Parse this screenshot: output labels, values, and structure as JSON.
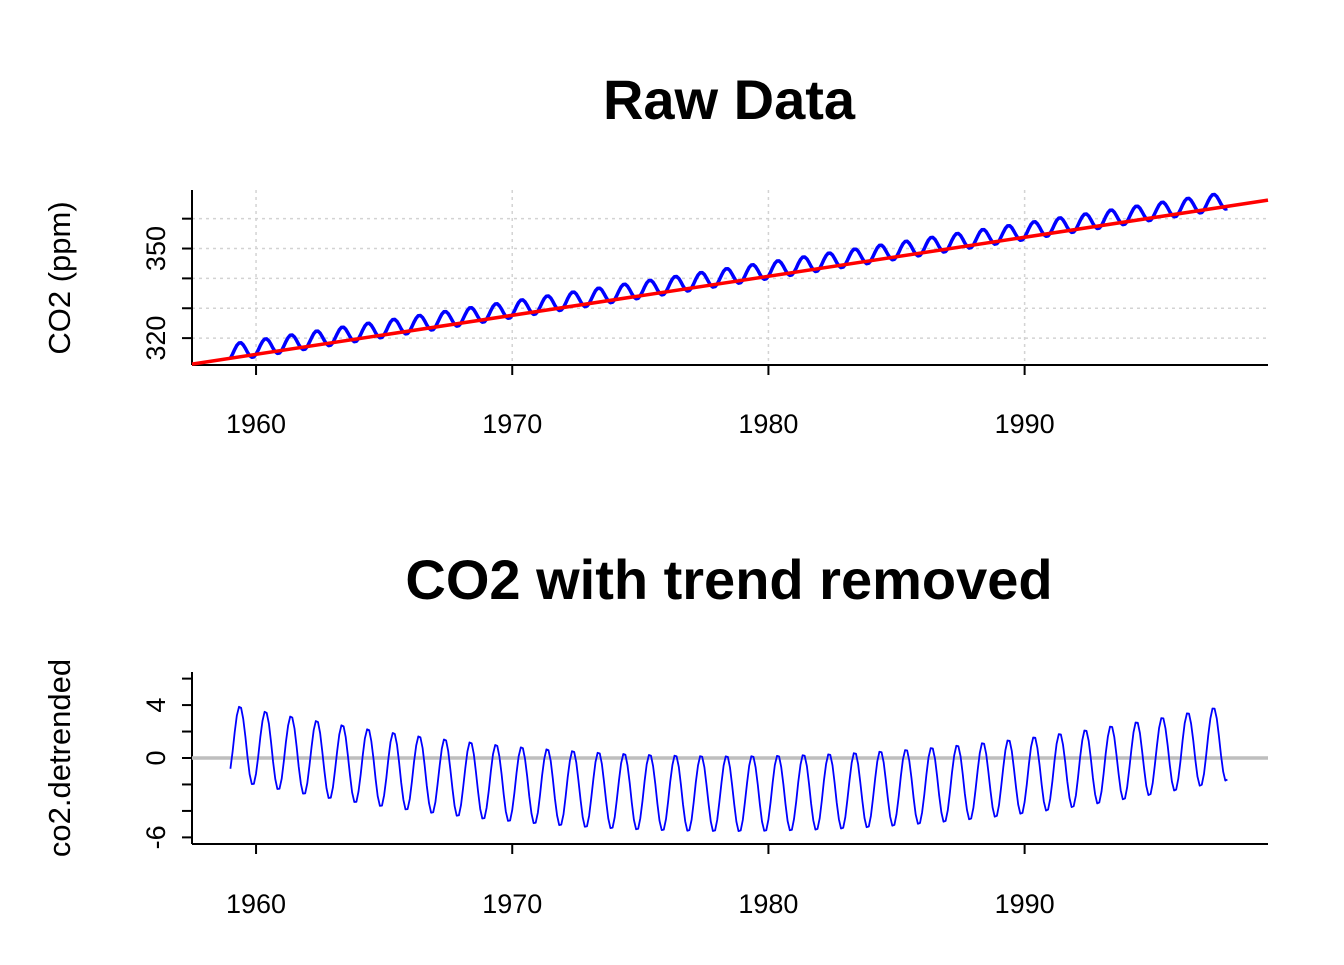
{
  "chart_data": [
    {
      "type": "line",
      "title": "Raw Data",
      "xlabel": "",
      "ylabel": "CO2 (ppm)",
      "xlim": [
        1957.5,
        1999.5
      ],
      "ylim": [
        311.0,
        369.6
      ],
      "x_ticks": [
        1960,
        1970,
        1980,
        1990
      ],
      "y_ticks": [
        320,
        330,
        340,
        350,
        360
      ],
      "y_tick_labels": [
        "320",
        "",
        "",
        "350",
        ""
      ],
      "grid": true,
      "series": [
        {
          "kind": "monthly CO2 concentration",
          "color": "#0000ff",
          "start": 1959.0,
          "end": 1997.917,
          "samples_per_year": 12,
          "trend_intercept": 315.2,
          "trend_slope": 1.307,
          "trend_curvature": 0.0,
          "seasonal_amplitude": 2.8,
          "peak_month_fraction": 0.37,
          "values_note": ""
        },
        {
          "kind": "linear trend",
          "color": "#ff0000",
          "x": [
            1957.5,
            1999.5
          ],
          "y": [
            311.3,
            366.2
          ]
        }
      ]
    },
    {
      "type": "line",
      "title": "CO2 with trend removed",
      "xlabel": "",
      "ylabel": "co2.detrended",
      "xlim": [
        1957.5,
        1999.5
      ],
      "ylim": [
        -6.5,
        6.5
      ],
      "x_ticks": [
        1960,
        1970,
        1980,
        1990
      ],
      "y_ticks": [
        -6,
        -4,
        -2,
        0,
        2,
        4,
        6
      ],
      "y_tick_labels": [
        "-6",
        "",
        "",
        "0",
        "",
        "4",
        ""
      ],
      "grid": false,
      "reference_line": {
        "y": 0,
        "color": "#bebebe"
      },
      "series": [
        {
          "kind": "residual",
          "color": "#0000ff",
          "start": 1959.0,
          "end": 1997.917,
          "samples_per_year": 12,
          "residual_quadratic": {
            "center": 1978.5,
            "a": 0.0102,
            "b": -2.7
          },
          "seasonal_amplitude": 2.9,
          "peak_month_fraction": 0.37
        }
      ]
    }
  ]
}
